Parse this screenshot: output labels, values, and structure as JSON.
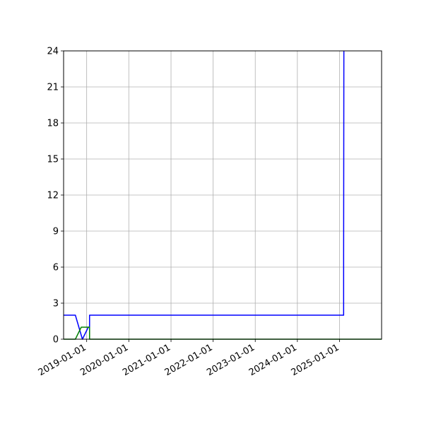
{
  "chart_data": {
    "type": "line",
    "title": "",
    "xlabel": "",
    "ylabel": "",
    "x_axis": {
      "kind": "date",
      "range": [
        "2018-06-15",
        "2025-12-31"
      ],
      "ticks": [
        "2019-01-01",
        "2020-01-01",
        "2021-01-01",
        "2022-01-01",
        "2023-01-01",
        "2024-01-01",
        "2025-01-01"
      ]
    },
    "y_axis": {
      "range": [
        0,
        24
      ],
      "ticks": [
        0,
        3,
        6,
        9,
        12,
        15,
        18,
        21,
        24
      ]
    },
    "grid": true,
    "legend": "none",
    "series": [
      {
        "color": "#0000ff",
        "points": [
          {
            "x": "2018-06-15",
            "y": 2
          },
          {
            "x": "2018-09-25",
            "y": 2
          },
          {
            "x": "2018-11-25",
            "y": 0
          },
          {
            "x": "2019-01-15",
            "y": 1
          },
          {
            "x": "2019-01-26",
            "y": 1
          },
          {
            "x": "2019-01-26",
            "y": 2
          },
          {
            "x": "2025-02-05",
            "y": 2
          },
          {
            "x": "2025-02-05",
            "y": 7
          },
          {
            "x": "2025-02-07",
            "y": 24
          }
        ]
      },
      {
        "color": "#008000",
        "points": [
          {
            "x": "2018-06-15",
            "y": 0
          },
          {
            "x": "2018-09-25",
            "y": 0
          },
          {
            "x": "2018-11-15",
            "y": 1
          },
          {
            "x": "2019-01-26",
            "y": 1
          },
          {
            "x": "2019-01-26",
            "y": 0
          },
          {
            "x": "2025-12-31",
            "y": 0
          }
        ]
      }
    ]
  }
}
